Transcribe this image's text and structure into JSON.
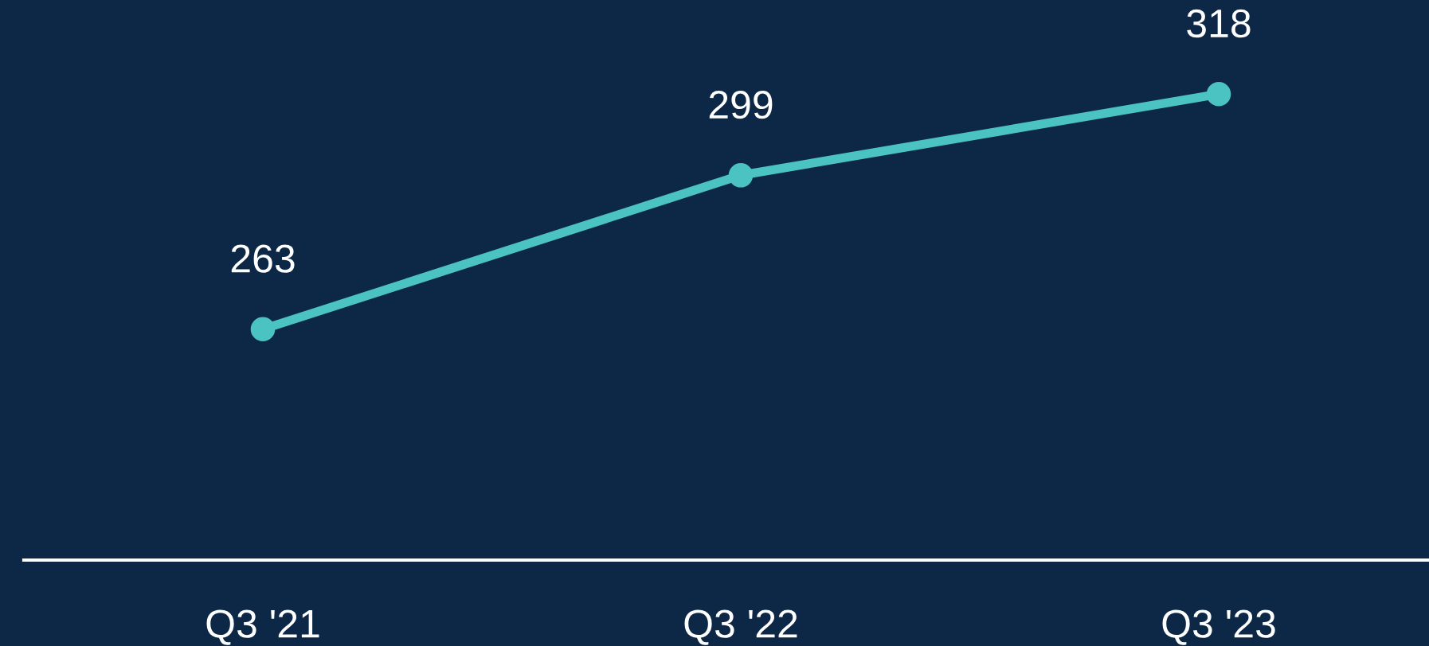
{
  "chart_data": {
    "type": "line",
    "categories": [
      "Q3 '21",
      "Q3 '22",
      "Q3 '23"
    ],
    "series": [
      {
        "color": "#4cc3c3",
        "values": [
          263,
          299,
          318
        ]
      }
    ],
    "ylim": [
      209,
      340
    ],
    "data_labels": true,
    "marker": "circle",
    "line_style": "solid"
  }
}
